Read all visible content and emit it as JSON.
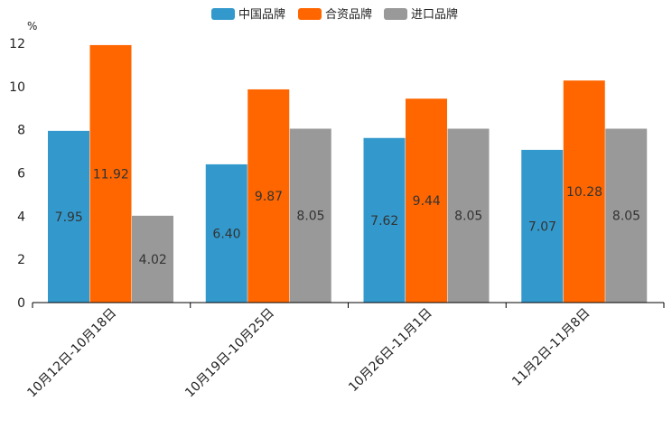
{
  "chart_data": {
    "type": "bar",
    "ylabel": "%",
    "ylim": [
      0,
      12
    ],
    "yticks": [
      0,
      2,
      4,
      6,
      8,
      10,
      12
    ],
    "legend_position": "top-center",
    "categories": [
      "10月12日-10月18日",
      "10月19日-10月25日",
      "10月26日-11月1日",
      "11月2日-11月8日"
    ],
    "series": [
      {
        "name": "中国品牌",
        "color": "#3399cc",
        "values": [
          7.95,
          6.4,
          7.62,
          7.07
        ],
        "labels": [
          "7.95",
          "6.40",
          "7.62",
          "7.07"
        ]
      },
      {
        "name": "合资品牌",
        "color": "#ff6600",
        "values": [
          11.92,
          9.87,
          9.44,
          10.28
        ],
        "labels": [
          "11.92",
          "9.87",
          "9.44",
          "10.28"
        ]
      },
      {
        "name": "进口品牌",
        "color": "#999999",
        "values": [
          4.02,
          8.05,
          8.05,
          8.05
        ],
        "labels": [
          "4.02",
          "8.05",
          "8.05",
          "8.05"
        ]
      }
    ]
  }
}
